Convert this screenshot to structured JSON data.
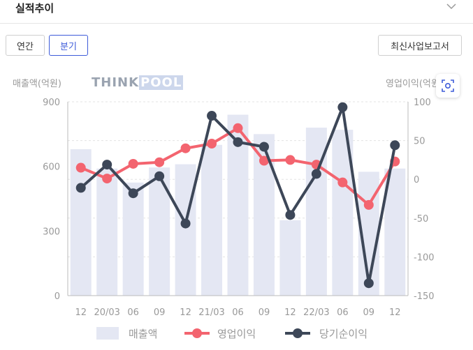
{
  "header": {
    "title": "실적추이"
  },
  "buttons": {
    "annual": "연간",
    "quarterly": "분기",
    "report": "최신사업보고서"
  },
  "axes": {
    "left_label": "매출액(억원)",
    "right_label": "영업이익(억원)"
  },
  "logo": {
    "part1": "THINK",
    "part2": "POOL"
  },
  "chart_data": {
    "type": "bar",
    "categories": [
      "12",
      "20/03",
      "06",
      "09",
      "12",
      "21/03",
      "06",
      "09",
      "12",
      "22/03",
      "06",
      "09",
      "12"
    ],
    "left_axis": {
      "label": "매출액(억원)",
      "ticks": [
        0,
        300,
        600,
        900
      ],
      "ylim": [
        0,
        900
      ]
    },
    "right_axis": {
      "label": "영업이익(억원)",
      "ticks": [
        100,
        50,
        0,
        -50,
        -100,
        -150
      ],
      "ylim": [
        -150,
        100
      ]
    },
    "series": [
      {
        "name": "매출액",
        "type": "bar",
        "axis": "left",
        "color": "#e4e7f3",
        "values": [
          680,
          590,
          525,
          595,
          610,
          700,
          840,
          750,
          350,
          780,
          770,
          575,
          590
        ]
      },
      {
        "name": "영업이익",
        "type": "line",
        "axis": "right",
        "color": "#f3646f",
        "values": [
          15,
          1,
          20,
          22,
          40,
          46,
          66,
          24,
          25,
          19,
          -4,
          -33,
          23
        ]
      },
      {
        "name": "당기순이익",
        "type": "line",
        "axis": "right",
        "color": "#3d4758",
        "values": [
          -11,
          19,
          -18,
          4,
          -57,
          82,
          48,
          42,
          -46,
          7,
          93,
          -134,
          44
        ]
      }
    ],
    "legend": [
      "매출액",
      "영업이익",
      "당기순이익"
    ],
    "legend_position": "bottom",
    "grid": true
  }
}
